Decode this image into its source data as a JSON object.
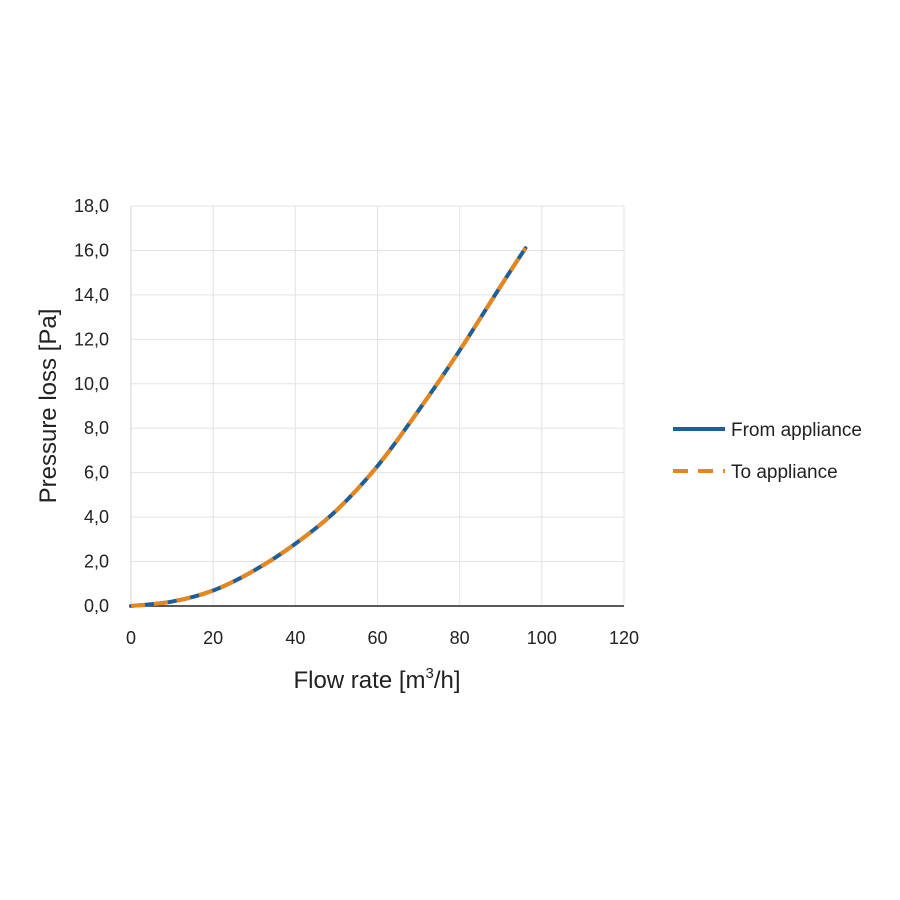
{
  "chart_data": {
    "type": "line",
    "title": "",
    "xlabel_main": "Flow rate [m",
    "xlabel_sup": "3",
    "xlabel_end": "/h]",
    "ylabel": "Pressure loss [Pa]",
    "xlim": [
      0,
      120
    ],
    "ylim": [
      0,
      18
    ],
    "x_ticks": [
      "0",
      "20",
      "40",
      "60",
      "80",
      "100",
      "120"
    ],
    "y_ticks": [
      "0,0",
      "2,0",
      "4,0",
      "6,0",
      "8,0",
      "10,0",
      "12,0",
      "14,0",
      "16,0",
      "18,0"
    ],
    "grid": true,
    "legend_position": "right",
    "series": [
      {
        "name": "From appliance",
        "color": "#1f5f96",
        "style": "solid",
        "x": [
          0,
          10,
          20,
          30,
          40,
          50,
          60,
          70,
          80,
          90,
          96
        ],
        "y": [
          0.0,
          0.2,
          0.7,
          1.6,
          2.8,
          4.3,
          6.3,
          8.8,
          11.5,
          14.4,
          16.1
        ]
      },
      {
        "name": "To appliance",
        "color": "#e8861c",
        "style": "dashed",
        "x": [
          0,
          10,
          20,
          30,
          40,
          50,
          60,
          70,
          80,
          90,
          96
        ],
        "y": [
          0.0,
          0.2,
          0.7,
          1.6,
          2.8,
          4.3,
          6.3,
          8.8,
          11.5,
          14.4,
          16.1
        ]
      }
    ]
  }
}
